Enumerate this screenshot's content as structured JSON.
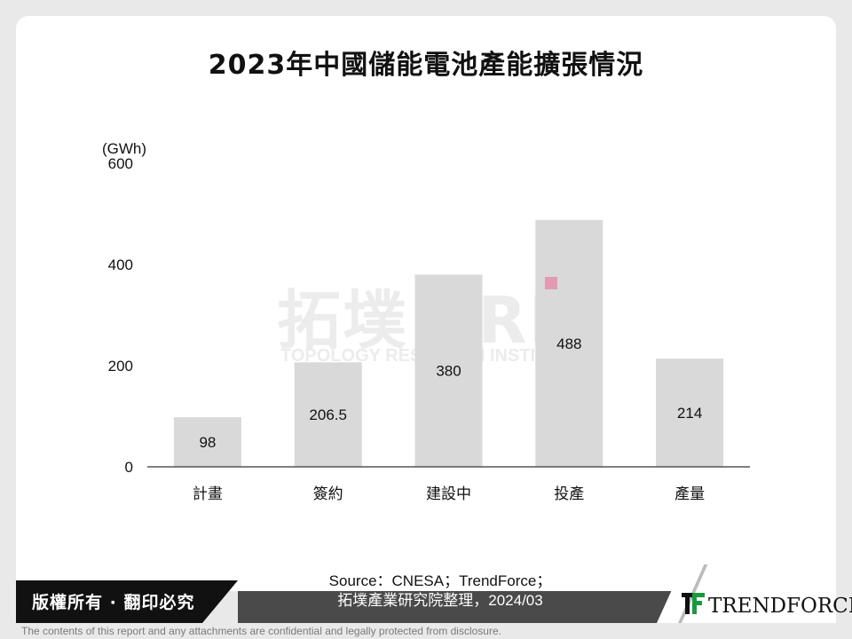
{
  "title": "2023年中國儲能電池產能擴張情況",
  "watermark": {
    "main": "拓墣 TRI",
    "sub": "TOPOLOGY RESEARCH INSTITUTE"
  },
  "chart_data": {
    "type": "bar",
    "categories": [
      "計畫",
      "簽約",
      "建設中",
      "投產",
      "產量"
    ],
    "values": [
      98,
      206.5,
      380,
      488,
      214
    ],
    "value_labels": [
      "98",
      "206.5",
      "380",
      "488",
      "214"
    ],
    "unit_label": "(GWh)",
    "y_ticks": [
      0,
      200,
      400,
      600
    ],
    "ylim": [
      0,
      600
    ],
    "bar_color": "#d9d9d9",
    "grid": false,
    "legend": "none"
  },
  "source": {
    "line1": "Source：CNESA；TrendForce；",
    "line2": "拓墣產業研究院整理，2024/03"
  },
  "footer": {
    "copyright": "版權所有 · 翻印必究",
    "logo_text": "TRENDFORCE",
    "logo_icon": "trendforce-tf-icon",
    "brand_green": "#1a9a3e",
    "disclaimer": "The contents of this report and any attachments are confidential and legally protected from disclosure."
  }
}
